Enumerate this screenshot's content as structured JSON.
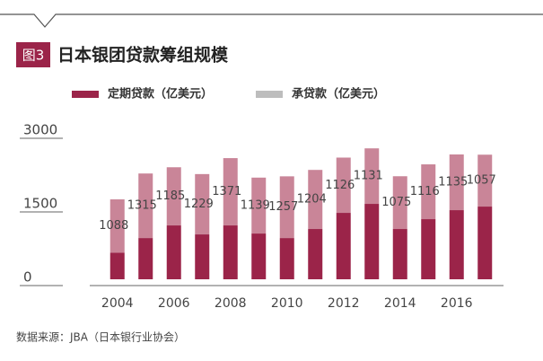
{
  "header": {
    "badge": "图3",
    "title": "日本银团贷款筹组规模"
  },
  "chart_data": {
    "type": "bar",
    "stacked": true,
    "categories": [
      "2004",
      null,
      "2006",
      null,
      "2008",
      null,
      "2010",
      null,
      "2012",
      null,
      "2014",
      null,
      "2016",
      null
    ],
    "series": [
      {
        "name": "定期贷款（亿美元）",
        "color": "#9b2449",
        "show_labels": false,
        "values": [
          540,
          840,
          1097,
          914,
          1097,
          932,
          840,
          1024,
          1353,
          1536,
          1024,
          1225,
          1408,
          1481
        ]
      },
      {
        "name": "承贷款（亿美元）",
        "color": "#c98598",
        "legend_color": "#bdbdbd",
        "show_labels": true,
        "values": [
          1088,
          1315,
          1185,
          1229,
          1371,
          1139,
          1257,
          1204,
          1126,
          1131,
          1075,
          1116,
          1135,
          1057
        ]
      }
    ],
    "ylim": [
      0,
      3000
    ],
    "yticks": [
      0,
      1500,
      3000
    ]
  },
  "footer": {
    "source": "数据来源：JBA（日本银行业协会）"
  }
}
